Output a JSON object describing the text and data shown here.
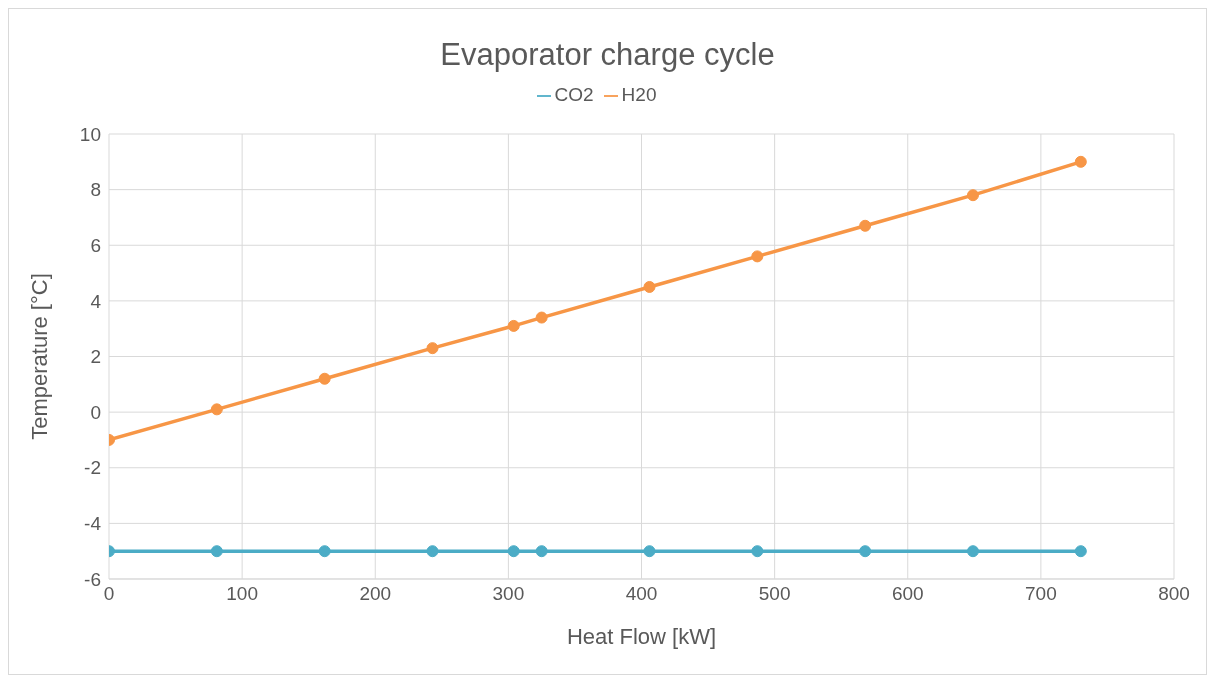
{
  "chart_data": {
    "type": "line",
    "title": "Evaporator charge cycle",
    "xlabel": "Heat Flow [kW]",
    "ylabel": "Temperature [°C]",
    "x": [
      0,
      81,
      162,
      243,
      304,
      325,
      406,
      487,
      568,
      649,
      730
    ],
    "series": [
      {
        "name": "H20",
        "color": "#f79646",
        "values": [
          -1,
          0.1,
          1.2,
          2.3,
          3.1,
          3.4,
          4.5,
          5.6,
          6.7,
          7.8,
          9
        ]
      },
      {
        "name": "CO2",
        "color": "#4bacc6",
        "values": [
          -5,
          -5,
          -5,
          -5,
          -5,
          -5,
          -5,
          -5,
          -5,
          -5,
          -5
        ]
      }
    ],
    "xlim": [
      0,
      800
    ],
    "xticks": [
      0,
      100,
      200,
      300,
      400,
      500,
      600,
      700,
      800
    ],
    "ylim": [
      -6,
      10
    ],
    "yticks": [
      -6,
      -4,
      -2,
      0,
      2,
      4,
      6,
      8,
      10
    ],
    "grid": true,
    "legend": "top",
    "marker": "circle",
    "line_style": "solid"
  }
}
